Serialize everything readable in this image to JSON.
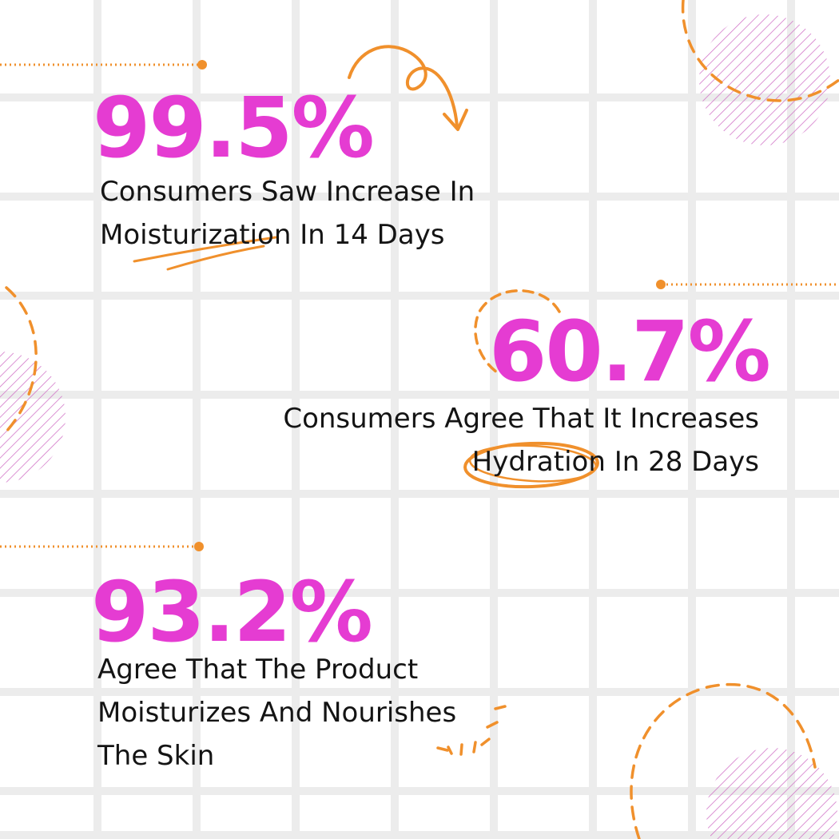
{
  "stats": [
    {
      "value": "99.5%",
      "lines": [
        "Consumers Saw Increase In",
        "Moisturization In 14 Days"
      ]
    },
    {
      "value": "60.7%",
      "lines": [
        "Consumers Agree That It Increases",
        "Hydration In 28 Days"
      ]
    },
    {
      "value": "93.2%",
      "lines": [
        "Agree That The Product",
        "Moisturizes And Nourishes",
        "The Skin"
      ]
    }
  ],
  "colors": {
    "accent_pink": "#e53cd2",
    "accent_orange": "#f0902c",
    "grid": "#ececec",
    "text": "#141414",
    "background": "#ffffff"
  }
}
